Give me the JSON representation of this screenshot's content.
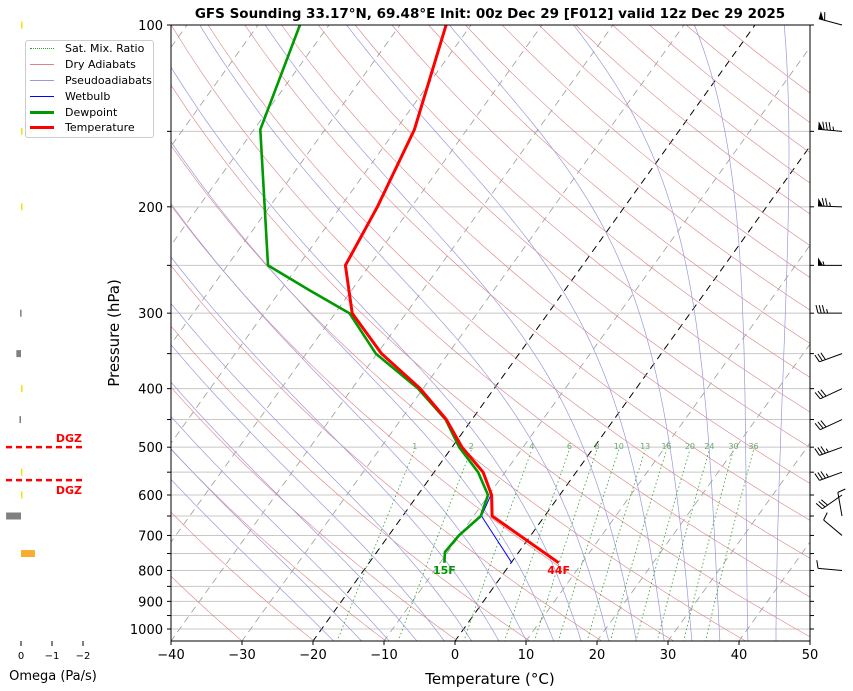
{
  "chart_data": {
    "type": "line",
    "title": "GFS Sounding 33.17°N, 69.48°E Init: 00z Dec 29 [F012] valid 12z Dec 29 2025",
    "xlabel": "Temperature (°C)",
    "ylabel": "Pressure (hPa)",
    "xlim": [
      -40,
      50
    ],
    "ylim": [
      1050,
      100
    ],
    "xticks": [
      "−40",
      "−30",
      "−20",
      "−10",
      "0",
      "10",
      "20",
      "30",
      "40",
      "50"
    ],
    "xtick_values": [
      -40,
      -30,
      -20,
      -10,
      0,
      10,
      20,
      30,
      40,
      50
    ],
    "yticks": [
      "100",
      "200",
      "300",
      "400",
      "500",
      "600",
      "700",
      "800",
      "900",
      "1000"
    ],
    "ytick_values": [
      100,
      200,
      300,
      400,
      500,
      600,
      700,
      800,
      900,
      1000
    ],
    "minor_pressures": [
      150,
      250,
      350,
      450,
      550,
      650,
      750,
      850,
      950
    ],
    "legend": {
      "placement": "top-left",
      "entries": [
        {
          "label": "Sat. Mix. Ratio",
          "color": "#2ca02c",
          "style": "dotted"
        },
        {
          "label": "Dry Adiabats",
          "color": "#e08080",
          "style": "solid"
        },
        {
          "label": "Pseudoadiabats",
          "color": "#9999dd",
          "style": "solid"
        },
        {
          "label": "Wetbulb",
          "color": "#0000ff",
          "style": "solid"
        },
        {
          "label": "Dewpoint",
          "color": "#009900",
          "style": "thick"
        },
        {
          "label": "Temperature",
          "color": "#ff0000",
          "style": "thick"
        }
      ]
    },
    "series": [
      {
        "name": "Temperature",
        "color": "#ff0000",
        "pressure": [
          100,
          149,
          200,
          250,
          300,
          350,
          400,
          450,
          500,
          550,
          600,
          650,
          777
        ],
        "values": [
          -63.5,
          -57.4,
          -54.8,
          -53.4,
          -47.6,
          -39.4,
          -30.4,
          -23.6,
          -18.6,
          -13.1,
          -9.6,
          -7.4,
          6.7
        ]
      },
      {
        "name": "Dewpoint",
        "color": "#009900",
        "pressure": [
          100,
          149,
          250,
          275,
          300,
          350,
          400,
          450,
          500,
          550,
          600,
          650,
          700,
          746,
          777
        ],
        "values": [
          -84.1,
          -79.1,
          -64.3,
          -55.9,
          -48.0,
          -40.2,
          -30.7,
          -23.7,
          -19.0,
          -13.8,
          -10.1,
          -9.0,
          -10.1,
          -10.4,
          -9.4
        ]
      },
      {
        "name": "Wetbulb",
        "color": "#0000ff",
        "pressure": [
          600,
          650,
          777
        ],
        "values": [
          -9.7,
          -8.9,
          0.1
        ]
      }
    ],
    "annotations": [
      {
        "text": "15F",
        "color": "#009900",
        "pressure": 777,
        "temp": -9.4
      },
      {
        "text": "44F",
        "color": "#ff0000",
        "pressure": 777,
        "temp": 6.7
      }
    ],
    "highlight_isotherms": [
      0,
      -20
    ],
    "mixing_ratio_labels": [
      "1",
      "2",
      "4",
      "6",
      "8",
      "10",
      "13",
      "16",
      "20",
      "24",
      "30",
      "36"
    ],
    "mixing_ratio_values": [
      1,
      2,
      4,
      6,
      8,
      10,
      13,
      16,
      20,
      24,
      30,
      36
    ],
    "winds": [
      {
        "pressure": 100,
        "dir": 285,
        "kt": 60
      },
      {
        "pressure": 150,
        "dir": 275,
        "kt": 85
      },
      {
        "pressure": 200,
        "dir": 272,
        "kt": 75
      },
      {
        "pressure": 250,
        "dir": 270,
        "kt": 55
      },
      {
        "pressure": 300,
        "dir": 270,
        "kt": 35
      },
      {
        "pressure": 350,
        "dir": 250,
        "kt": 30
      },
      {
        "pressure": 400,
        "dir": 245,
        "kt": 30
      },
      {
        "pressure": 450,
        "dir": 245,
        "kt": 30
      },
      {
        "pressure": 500,
        "dir": 250,
        "kt": 35
      },
      {
        "pressure": 550,
        "dir": 250,
        "kt": 35
      },
      {
        "pressure": 600,
        "dir": 235,
        "kt": 30
      },
      {
        "pressure": 650,
        "dir": 350,
        "kt": 10
      },
      {
        "pressure": 700,
        "dir": 310,
        "kt": 10
      },
      {
        "pressure": 800,
        "dir": 275,
        "kt": 10
      }
    ],
    "omega": {
      "xlabel": "Omega (Pa/s)",
      "xticks": [
        "0",
        "−1",
        "−2"
      ],
      "xtick_values": [
        0,
        -1,
        -2
      ],
      "bars": [
        {
          "pressure": 100,
          "value": -0.05,
          "color": "#f5e400"
        },
        {
          "pressure": 150,
          "value": -0.03,
          "color": "#f5e400"
        },
        {
          "pressure": 200,
          "value": -0.01,
          "color": "#f5e400"
        },
        {
          "pressure": 300,
          "value": 0.03,
          "color": "#808080"
        },
        {
          "pressure": 350,
          "value": 0.15,
          "color": "#808080"
        },
        {
          "pressure": 400,
          "value": -0.05,
          "color": "#f5e400"
        },
        {
          "pressure": 450,
          "value": 0.05,
          "color": "#808080"
        },
        {
          "pressure": 550,
          "value": -0.02,
          "color": "#f5e400"
        },
        {
          "pressure": 600,
          "value": -0.02,
          "color": "#f5e400"
        },
        {
          "pressure": 650,
          "value": 0.48,
          "color": "#808080"
        },
        {
          "pressure": 750,
          "value": -0.45,
          "color": "#f9ad30"
        }
      ],
      "dgz": {
        "label": "DGZ",
        "top_pressure": 500,
        "bottom_pressure": 567,
        "color": "#ff0000"
      }
    }
  }
}
